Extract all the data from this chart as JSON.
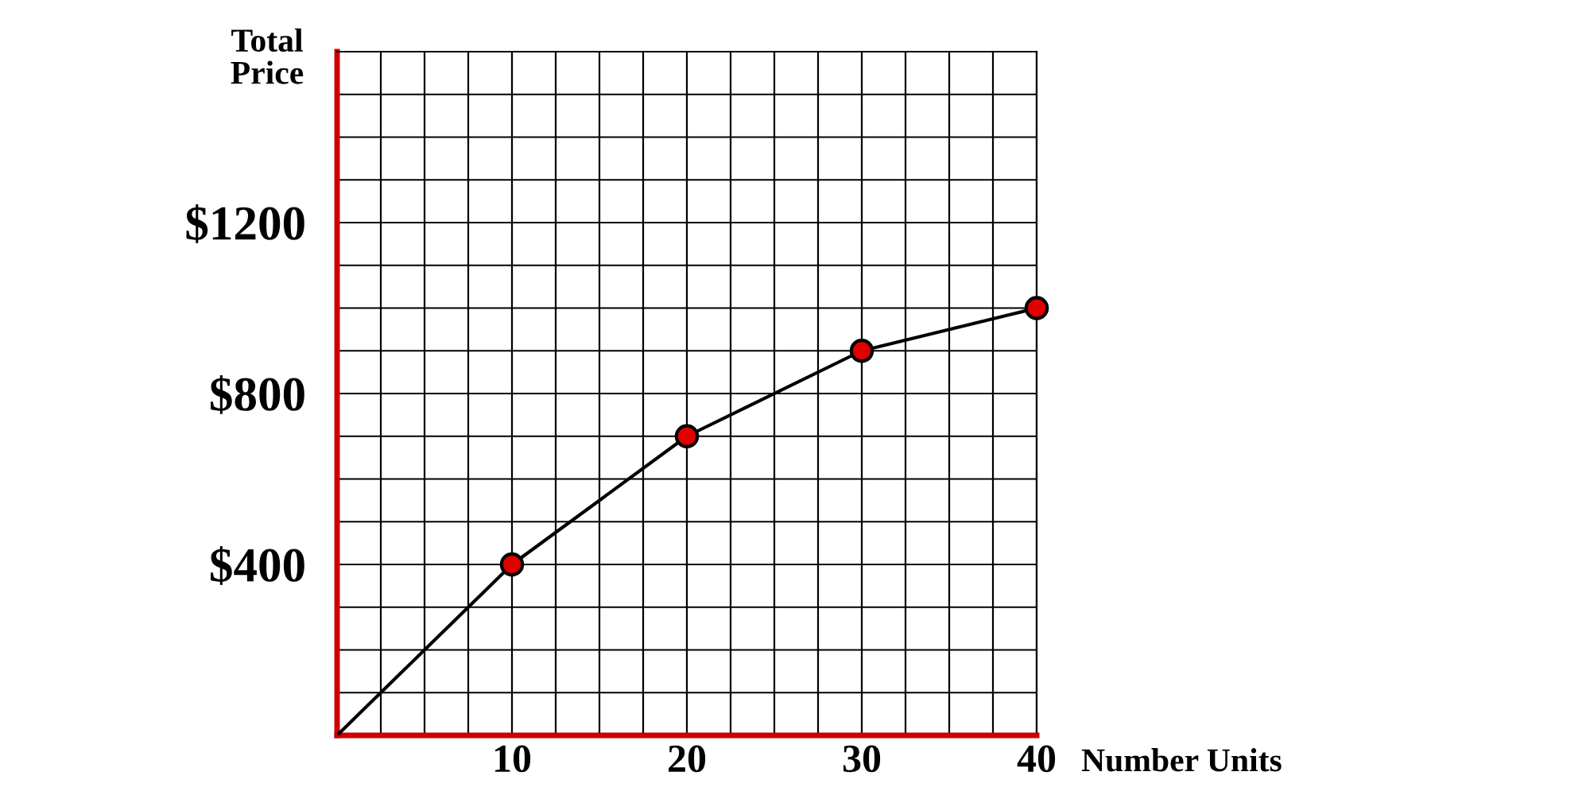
{
  "chart_data": {
    "type": "line",
    "xlabel": "Number Units",
    "ylabel": "Total\nPrice",
    "series": [
      {
        "color": "#000000",
        "x": [
          0,
          10,
          20,
          30,
          40
        ],
        "values": [
          0,
          400,
          700,
          900,
          1000
        ],
        "marker": "none"
      },
      {
        "type": "scatter",
        "color": "#e00000",
        "x": [
          10,
          20,
          30,
          40
        ],
        "values": [
          400,
          700,
          900,
          1000
        ],
        "marker": "circle"
      }
    ],
    "xlim": [
      0,
      40
    ],
    "ylim": [
      0,
      1600
    ],
    "xticks": [
      {
        "value": 2.5,
        "label": null
      },
      {
        "value": 5,
        "label": null
      },
      {
        "value": 7.5,
        "label": null
      },
      10,
      {
        "value": 12.5,
        "label": null
      },
      {
        "value": 15,
        "label": null
      },
      {
        "value": 17.5,
        "label": null
      },
      20,
      {
        "value": 22.5,
        "label": null
      },
      {
        "value": 25,
        "label": null
      },
      {
        "value": 27.5,
        "label": null
      },
      30,
      {
        "value": 32.5,
        "label": null
      },
      {
        "value": 35,
        "label": null
      },
      {
        "value": 37.5,
        "label": null
      },
      40
    ],
    "yticks": [
      {
        "value": 100,
        "label": null
      },
      {
        "value": 200,
        "label": null
      },
      {
        "value": 300,
        "label": null
      },
      {
        "value": 400,
        "label": "$400"
      },
      {
        "value": 500,
        "label": null
      },
      {
        "value": 600,
        "label": null
      },
      {
        "value": 700,
        "label": null
      },
      {
        "value": 800,
        "label": "$800"
      },
      {
        "value": 900,
        "label": null
      },
      {
        "value": 1000,
        "label": null
      },
      {
        "value": 1100,
        "label": null
      },
      {
        "value": 1200,
        "label": "$1200"
      },
      {
        "value": 1300,
        "label": null
      },
      {
        "value": 1400,
        "label": null
      },
      {
        "value": 1500,
        "label": null
      },
      {
        "value": 1600,
        "label": null
      }
    ],
    "grid": true
  }
}
